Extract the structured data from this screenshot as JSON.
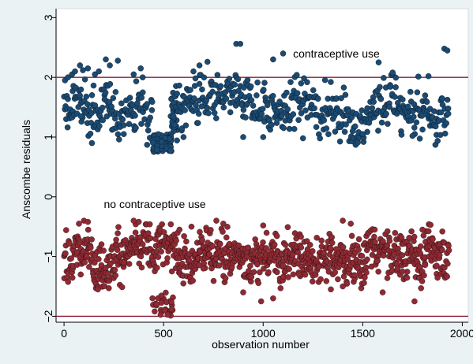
{
  "chart_data": {
    "type": "scatter",
    "title": "",
    "xlabel": "observation number",
    "ylabel": "Anscombe residuals",
    "xlim": [
      -40,
      2030
    ],
    "ylim": [
      -2.1,
      3.15
    ],
    "xticks": [
      0,
      500,
      1000,
      1500,
      2000
    ],
    "yticks": [
      -2,
      -1,
      0,
      1,
      2,
      3
    ],
    "xtick_labels": [
      "0",
      "500",
      "1000",
      "1500",
      "2000"
    ],
    "ytick_labels": [
      "−2",
      "−1",
      "0",
      "1",
      "2",
      "3"
    ],
    "grid": false,
    "reference_lines": [
      {
        "axis": "y",
        "value": 2,
        "color": "#8c1c3a"
      },
      {
        "axis": "y",
        "value": -2,
        "color": "#8c1c3a"
      }
    ],
    "annotations": [
      {
        "text": "contraceptive use",
        "x": 1150,
        "y": 2.4
      },
      {
        "text": "no contraceptive use",
        "x": 200,
        "y": -0.12
      }
    ],
    "series": [
      {
        "name": "contraceptive use",
        "color": "#1b4a72",
        "n_points": 760,
        "x_range": [
          0,
          1934
        ],
        "y_typical_range": [
          0.95,
          2.0
        ],
        "points": [
          [
            5,
            1.95
          ],
          [
            20,
            2.0
          ],
          [
            40,
            2.05
          ],
          [
            55,
            2.1
          ],
          [
            80,
            2.2
          ],
          [
            95,
            2.12
          ],
          [
            120,
            2.15
          ],
          [
            155,
            2.05
          ],
          [
            175,
            2.1
          ],
          [
            210,
            2.3
          ],
          [
            230,
            2.2
          ],
          [
            270,
            2.28
          ],
          [
            350,
            2.05
          ],
          [
            385,
            2.15
          ],
          [
            395,
            2.0
          ],
          [
            650,
            2.1
          ],
          [
            680,
            2.2
          ],
          [
            720,
            2.26
          ],
          [
            865,
            2.56
          ],
          [
            885,
            2.56
          ],
          [
            1050,
            2.3
          ],
          [
            1100,
            2.4
          ],
          [
            1580,
            2.25
          ],
          [
            1650,
            2.08
          ],
          [
            1830,
            2.02
          ],
          [
            1910,
            2.48
          ],
          [
            1925,
            2.45
          ],
          [
            85,
            1.35
          ],
          [
            140,
            0.9
          ],
          [
            300,
            1.05
          ],
          [
            600,
            1.0
          ],
          [
            900,
            1.0
          ],
          [
            1000,
            1.0
          ],
          [
            1200,
            0.98
          ],
          [
            1500,
            1.05
          ],
          [
            1750,
            1.02
          ],
          [
            1450,
            1.1
          ]
        ],
        "cluster": {
          "x": [
            440,
            540
          ],
          "y": [
            0.75,
            1.05
          ],
          "n_points": 90
        }
      },
      {
        "name": "no contraceptive use",
        "color": "#8e2a33",
        "n_points": 1000,
        "x_range": [
          0,
          1934
        ],
        "y_typical_range": [
          -1.45,
          -0.5
        ],
        "points": [
          [
            75,
            -0.45
          ],
          [
            100,
            -0.4
          ],
          [
            120,
            -0.42
          ],
          [
            350,
            -0.4
          ],
          [
            375,
            -0.42
          ],
          [
            580,
            -0.55
          ],
          [
            640,
            -0.5
          ],
          [
            765,
            -0.4
          ],
          [
            800,
            -0.45
          ],
          [
            1000,
            -0.48
          ],
          [
            1400,
            -0.4
          ],
          [
            1440,
            -0.45
          ],
          [
            1560,
            -0.55
          ],
          [
            1800,
            -0.55
          ],
          [
            1900,
            -0.58
          ],
          [
            900,
            -1.6
          ],
          [
            990,
            -1.75
          ],
          [
            1050,
            -1.7
          ],
          [
            1340,
            -1.55
          ],
          [
            1600,
            -1.6
          ],
          [
            1760,
            -1.75
          ],
          [
            1400,
            -1.5
          ],
          [
            170,
            -1.55
          ],
          [
            1180,
            -1.3
          ],
          [
            700,
            -1.2
          ],
          [
            300,
            -1.1
          ],
          [
            1100,
            -1.15
          ],
          [
            1700,
            -1.25
          ],
          [
            1510,
            -1.35
          ]
        ],
        "cluster": {
          "x": [
            440,
            550
          ],
          "y": [
            -2.0,
            -1.6
          ],
          "n_points": 28
        }
      }
    ]
  }
}
